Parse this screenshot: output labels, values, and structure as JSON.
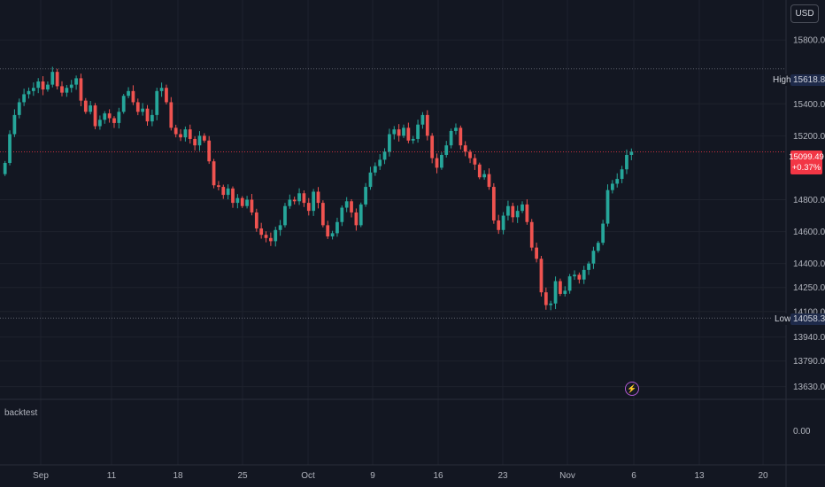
{
  "toolbar": {
    "currency": "USD"
  },
  "indicator_pane": {
    "label": "backtest",
    "value_label": "0.00"
  },
  "price_lines": {
    "high_label": "High",
    "high_value": "15618.85",
    "low_label": "Low",
    "low_value": "14058.33",
    "last_value": "15099.49",
    "last_change": "+0.37%"
  },
  "event_icon": "lightning-icon",
  "colors": {
    "up": "#26a69a",
    "down": "#ef5350",
    "background": "#131722",
    "event": "#b45bd6"
  },
  "chart_data": {
    "type": "candlestick",
    "title": "",
    "x_tick_labels": [
      "Sep",
      "11",
      "18",
      "25",
      "Oct",
      "9",
      "16",
      "23",
      "Nov",
      "6",
      "13",
      "20"
    ],
    "y_tick_labels": [
      "15800.00",
      "15400.00",
      "15200.00",
      "14800.00",
      "14600.00",
      "14400.00",
      "14250.00",
      "14100.00",
      "13940.00",
      "13790.00",
      "13630.00"
    ],
    "y_tick_values": [
      15800,
      15400,
      15200,
      14800,
      14600,
      14400,
      14250,
      14100,
      13940,
      13790,
      13630
    ],
    "ylim": [
      13550,
      16050
    ],
    "high": 15618.85,
    "low": 14058.33,
    "last": 15099.49,
    "closes": [
      15030,
      15210,
      15330,
      15410,
      15460,
      15480,
      15500,
      15540,
      15490,
      15520,
      15600,
      15510,
      15470,
      15500,
      15520,
      15560,
      15420,
      15350,
      15390,
      15260,
      15300,
      15340,
      15310,
      15280,
      15350,
      15450,
      15480,
      15410,
      15350,
      15370,
      15290,
      15330,
      15480,
      15500,
      15410,
      15250,
      15210,
      15190,
      15240,
      15180,
      15140,
      15200,
      15170,
      15040,
      14890,
      14880,
      14830,
      14870,
      14780,
      14810,
      14760,
      14800,
      14720,
      14620,
      14580,
      14560,
      14540,
      14610,
      14640,
      14760,
      14800,
      14790,
      14840,
      14780,
      14730,
      14850,
      14780,
      14640,
      14570,
      14590,
      14660,
      14750,
      14790,
      14720,
      14640,
      14770,
      14880,
      14970,
      15010,
      15050,
      15100,
      15210,
      15240,
      15200,
      15250,
      15170,
      15180,
      15270,
      15330,
      15200,
      15060,
      15000,
      15080,
      15140,
      15230,
      15250,
      15140,
      15100,
      15060,
      15020,
      14940,
      14960,
      14880,
      14670,
      14610,
      14700,
      14760,
      14690,
      14730,
      14770,
      14660,
      14500,
      14430,
      14220,
      14140,
      14150,
      14290,
      14210,
      14230,
      14320,
      14330,
      14300,
      14360,
      14400,
      14480,
      14530,
      14650,
      14860,
      14900,
      14930,
      14990,
      15080,
      15099.49
    ]
  }
}
